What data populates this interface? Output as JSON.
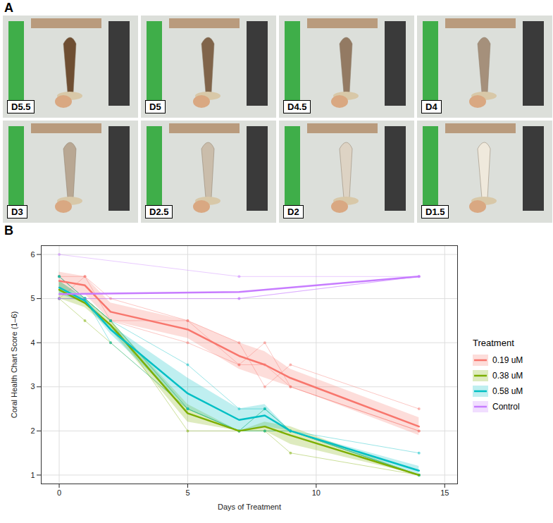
{
  "panel_a": {
    "label": "A",
    "images": [
      "D5.5",
      "D5",
      "D4.5",
      "D4",
      "D3",
      "D2.5",
      "D2",
      "D1.5"
    ]
  },
  "chart_data": {
    "type": "line",
    "panel_label": "B",
    "x_label": "Days of Treatment",
    "y_label": "Coral Health Chart Score (1–6)",
    "legend_title": "Treatment",
    "legend": "right",
    "grid": true,
    "xlim": [
      -0.7,
      15.5
    ],
    "xticks": [
      0,
      5,
      10,
      15
    ],
    "ylim": [
      0.8,
      6.2
    ],
    "yticks": [
      1,
      2,
      3,
      4,
      5,
      6
    ],
    "series": [
      {
        "name": "0.19 uM",
        "color": "#F8766D",
        "x": [
          0,
          1,
          2,
          5,
          7,
          8,
          9,
          14
        ],
        "values": [
          5.4,
          5.3,
          4.7,
          4.3,
          3.7,
          3.5,
          3.2,
          2.1
        ],
        "lower": [
          5.2,
          5.1,
          4.5,
          4.1,
          3.4,
          3.2,
          3.0,
          1.9
        ],
        "upper": [
          5.6,
          5.5,
          4.9,
          4.5,
          4.0,
          3.8,
          3.4,
          2.3
        ],
        "replicates": [
          [
            5.5,
            5.5,
            5.0,
            4.5,
            4.0,
            3.0,
            3.5,
            2.5
          ],
          [
            5.5,
            5.0,
            4.5,
            4.0,
            3.5,
            4.0,
            3.0,
            2.0
          ],
          [
            5.0,
            5.5,
            4.5,
            4.5,
            3.5,
            3.5,
            3.0,
            2.0
          ]
        ]
      },
      {
        "name": "0.38 uM",
        "color": "#7CAE00",
        "x": [
          0,
          1,
          2,
          5,
          7,
          8,
          9,
          14
        ],
        "values": [
          5.2,
          4.9,
          4.4,
          2.4,
          2.0,
          2.1,
          1.9,
          1.0
        ],
        "lower": [
          5.0,
          4.8,
          4.3,
          2.2,
          2.0,
          2.0,
          1.7,
          1.0
        ],
        "upper": [
          5.4,
          5.0,
          4.5,
          2.6,
          2.0,
          2.2,
          2.1,
          1.0
        ],
        "replicates": [
          [
            5.5,
            5.0,
            4.5,
            2.5,
            2.0,
            2.0,
            2.0,
            1.0
          ],
          [
            5.0,
            5.0,
            4.5,
            2.0,
            2.0,
            2.0,
            1.5,
            1.0
          ],
          [
            5.0,
            4.5,
            4.0,
            2.5,
            2.0,
            2.5,
            2.0,
            1.0
          ]
        ]
      },
      {
        "name": "0.58 uM",
        "color": "#00BFC4",
        "x": [
          0,
          1,
          2,
          5,
          7,
          8,
          9,
          14
        ],
        "values": [
          5.25,
          4.95,
          4.3,
          2.85,
          2.25,
          2.35,
          2.0,
          1.1
        ],
        "lower": [
          5.1,
          4.9,
          4.2,
          2.5,
          2.0,
          2.1,
          2.0,
          1.0
        ],
        "upper": [
          5.4,
          5.0,
          4.4,
          3.2,
          2.5,
          2.6,
          2.0,
          1.2
        ],
        "replicates": [
          [
            5.5,
            5.0,
            4.5,
            3.5,
            2.5,
            2.5,
            2.0,
            1.0
          ],
          [
            5.0,
            5.0,
            4.0,
            2.5,
            2.0,
            2.0,
            2.0,
            1.5
          ],
          [
            5.5,
            5.0,
            4.5,
            2.5,
            2.0,
            2.5,
            2.0,
            1.0
          ]
        ]
      },
      {
        "name": "Control",
        "color": "#C77CFF",
        "x": [
          0,
          7,
          14
        ],
        "values": [
          5.1,
          5.15,
          5.5
        ],
        "replicates": [
          [
            6.0,
            5.5,
            5.5
          ],
          [
            5.0,
            5.0,
            5.5
          ],
          [
            5.0,
            5.0,
            5.5
          ]
        ]
      }
    ]
  }
}
